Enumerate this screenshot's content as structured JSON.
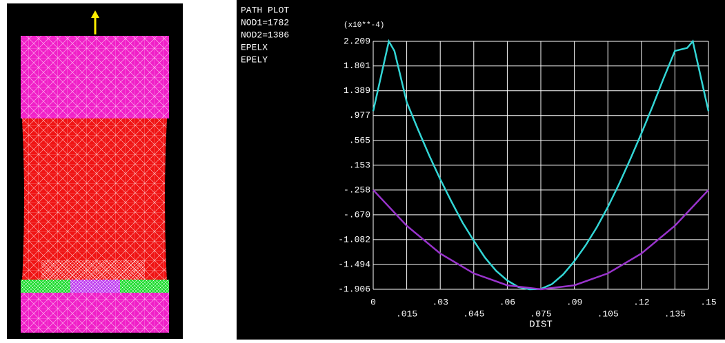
{
  "chart_data": {
    "type": "line",
    "title": "PATH PLOT",
    "annotations": [
      "NOD1=1782",
      "NOD2=1386"
    ],
    "y_multiplier_label": "(x10**-4)",
    "xlabel": "DIST",
    "xlim": [
      0,
      0.15
    ],
    "xticks": [
      0,
      {
        "value": 0.015,
        "label": ".015"
      },
      {
        "value": 0.03,
        "label": ".03"
      },
      {
        "value": 0.045,
        "label": ".045"
      },
      {
        "value": 0.06,
        "label": ".06"
      },
      {
        "value": 0.075,
        "label": ".075"
      },
      {
        "value": 0.09,
        "label": ".09"
      },
      {
        "value": 0.105,
        "label": ".105"
      },
      {
        "value": 0.12,
        "label": ".12"
      },
      {
        "value": 0.135,
        "label": ".135"
      },
      {
        "value": 0.15,
        "label": ".15"
      }
    ],
    "ylim": [
      -1.906,
      2.209
    ],
    "yticks": [
      2.209,
      1.801,
      1.389,
      {
        "value": 0.977,
        "label": ".977"
      },
      {
        "value": 0.565,
        "label": ".565"
      },
      {
        "value": 0.153,
        "label": ".153"
      },
      {
        "value": -0.258,
        "label": "-.258"
      },
      {
        "value": -0.67,
        "label": "-.670"
      },
      -1.082,
      -1.494,
      -1.906
    ],
    "grid": true,
    "series": [
      {
        "name": "EPELX",
        "color": "#33d6d6",
        "x": [
          0,
          0.007,
          0.0095,
          0.015,
          0.02,
          0.025,
          0.03,
          0.035,
          0.04,
          0.045,
          0.05,
          0.055,
          0.06,
          0.065,
          0.07,
          0.075,
          0.08,
          0.085,
          0.09,
          0.095,
          0.1,
          0.105,
          0.11,
          0.115,
          0.12,
          0.125,
          0.13,
          0.135,
          0.1405,
          0.143,
          0.15
        ],
        "values": [
          1.05,
          2.209,
          2.05,
          1.2,
          0.75,
          0.32,
          -0.08,
          -0.45,
          -0.8,
          -1.1,
          -1.38,
          -1.6,
          -1.76,
          -1.87,
          -1.906,
          -1.9,
          -1.82,
          -1.66,
          -1.44,
          -1.18,
          -0.88,
          -0.54,
          -0.16,
          0.25,
          0.68,
          1.13,
          1.6,
          2.05,
          2.1,
          2.209,
          1.05
        ]
      },
      {
        "name": "EPELY",
        "color": "#9933cc",
        "x": [
          0,
          0.015,
          0.03,
          0.045,
          0.06,
          0.075,
          0.09,
          0.105,
          0.12,
          0.135,
          0.15
        ],
        "values": [
          -0.258,
          -0.851,
          -1.313,
          -1.642,
          -1.84,
          -1.906,
          -1.84,
          -1.642,
          -1.313,
          -0.851,
          -0.258
        ]
      }
    ]
  }
}
